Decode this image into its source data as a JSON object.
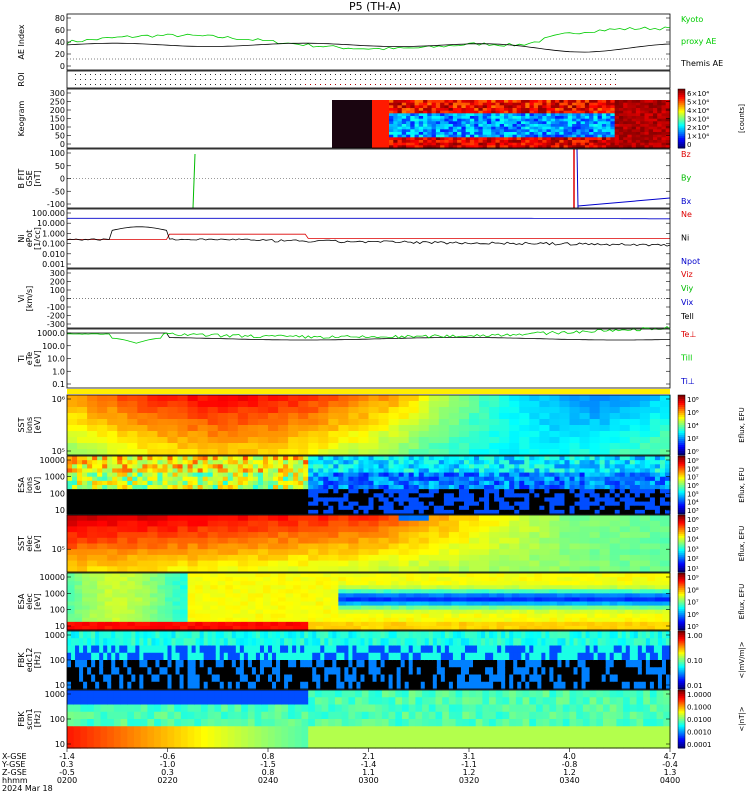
{
  "title": "P5 (TH-A)",
  "date_label": "2024 Mar 18",
  "colors": {
    "kyoto": "#00cc00",
    "themis": "#000000",
    "bz": "#dd0000",
    "by": "#00bb00",
    "bx": "#0000cc",
    "ne": "#dd0000",
    "ni": "#000000",
    "npot": "#0000cc",
    "te": "#000000",
    "ti": "#00cc00"
  },
  "x_axis": {
    "rows": [
      {
        "label": "X-GSE",
        "values": [
          "-1.4",
          "-0.6",
          "0.8",
          "2.1",
          "3.1",
          "4.0",
          "4.7"
        ]
      },
      {
        "label": "Y-GSE",
        "values": [
          "0.3",
          "-1.0",
          "-1.5",
          "-1.4",
          "-1.1",
          "-0.8",
          "-0.4"
        ]
      },
      {
        "label": "Z-GSE",
        "values": [
          "-0.5",
          "0.3",
          "0.8",
          "1.1",
          "1.2",
          "1.2",
          "1.3"
        ]
      },
      {
        "label": "hhmm",
        "values": [
          "0200",
          "0220",
          "0240",
          "0300",
          "0320",
          "0340",
          "0400"
        ]
      }
    ]
  },
  "panels": [
    {
      "id": "ae",
      "ylabel": "AE Index",
      "ticks": [
        "80",
        "60",
        "40",
        "20",
        "0"
      ],
      "yrange": [
        -5,
        85
      ],
      "legend": [
        {
          "text": "Kyoto",
          "color": "#00cc00"
        },
        {
          "text": "proxy AE",
          "color": "#00cc00"
        },
        {
          "text": "Themis AE",
          "color": "#000000"
        }
      ]
    },
    {
      "id": "roi",
      "ylabel": "ROI",
      "ticks": [],
      "legend": []
    },
    {
      "id": "keogram",
      "ylabel": "Keogram",
      "ticks": [
        "300",
        "250",
        "200",
        "150",
        "100",
        "50",
        "0"
      ],
      "cbar": {
        "ticks": [
          "6×10⁴",
          "5×10⁴",
          "4×10⁴",
          "3×10⁴",
          "2×10⁴",
          "1×10⁴",
          "0"
        ],
        "label": "[counts]",
        "type": "keo"
      }
    },
    {
      "id": "bfield",
      "ylabel": "B FIT",
      "ylabel2": "GSE",
      "ylabel3": "[nT]",
      "ticks": [
        "100",
        "50",
        "0",
        "-50",
        "-100"
      ],
      "yrange": [
        -100,
        100
      ],
      "legend": [
        {
          "text": "Bz",
          "color": "#dd0000"
        },
        {
          "text": "By",
          "color": "#00bb00"
        },
        {
          "text": "Bx",
          "color": "#0000cc"
        }
      ]
    },
    {
      "id": "density",
      "ylabel": "Ni",
      "ylabel2": "ePot",
      "ylabel3": "[1/cc]",
      "ticks": [
        "100.000",
        "10.000",
        "1.000",
        "0.100",
        "0.010",
        "0.001"
      ],
      "legend": [
        {
          "text": "Ne",
          "color": "#dd0000"
        },
        {
          "text": "Ni",
          "color": "#000000"
        },
        {
          "text": "Npot",
          "color": "#0000cc"
        }
      ]
    },
    {
      "id": "velocity",
      "ylabel": "Vi",
      "ylabel2": "[km/s]",
      "ticks": [
        "300",
        "200",
        "100",
        "0",
        "-100",
        "-200",
        "-300"
      ],
      "legend": [
        {
          "text": "Viz",
          "color": "#dd0000"
        },
        {
          "text": "Viy",
          "color": "#00bb00"
        },
        {
          "text": "Vix",
          "color": "#0000cc"
        },
        {
          "text": "Tell",
          "color": "#000000"
        }
      ]
    },
    {
      "id": "temperature",
      "ylabel": "Ti",
      "ylabel2": "eTe",
      "ylabel3": "[eV]",
      "ticks": [
        "1000.0",
        "100.0",
        "10.0",
        "1.0",
        "0.1"
      ],
      "legend": [
        {
          "text": "Te⊥",
          "color": "#dd0000"
        },
        {
          "text": "Till",
          "color": "#00cc00"
        },
        {
          "text": "Ti⊥",
          "color": "#0000cc"
        }
      ]
    },
    {
      "id": "sst_i",
      "ylabel": "SST",
      "ylabel2": "ions",
      "ylabel3": "[eV]",
      "ticks": [
        "10⁶",
        "10⁵"
      ],
      "cbar": {
        "ticks": [
          "10⁸",
          "10⁶",
          "10⁴",
          "10²",
          "10⁰"
        ],
        "label": "Eflux, EFU",
        "type": "jet"
      }
    },
    {
      "id": "esa_i",
      "ylabel": "ESA",
      "ylabel2": "ions",
      "ylabel3": "[eV]",
      "ticks": [
        "10000",
        "1000",
        "100",
        "10"
      ],
      "cbar": {
        "ticks": [
          "10⁹",
          "10⁸",
          "10⁷",
          "10⁶",
          "10⁵",
          "10⁴",
          "10³"
        ],
        "label": "Eflux, EFU",
        "type": "jet"
      }
    },
    {
      "id": "sst_e",
      "ylabel": "SST",
      "ylabel2": "elec",
      "ylabel3": "[eV]",
      "ticks": [
        "10⁵"
      ],
      "cbar": {
        "ticks": [
          "10⁶",
          "10⁵",
          "10⁴",
          "10³",
          "10²",
          "10¹"
        ],
        "label": "Eflux, EFU",
        "type": "jet"
      }
    },
    {
      "id": "esa_e",
      "ylabel": "ESA",
      "ylabel2": "elec",
      "ylabel3": "[eV]",
      "ticks": [
        "10000",
        "1000",
        "100",
        "10"
      ],
      "cbar": {
        "ticks": [
          "10⁹",
          "10⁸",
          "10⁷",
          "10⁶",
          "10⁵"
        ],
        "label": "Eflux, EFU",
        "type": "jet"
      }
    },
    {
      "id": "fbk_e",
      "ylabel": "FBK",
      "ylabel2": "edc12",
      "ylabel3": "[Hz]",
      "ticks": [
        "1000",
        "100",
        "10"
      ],
      "cbar": {
        "ticks": [
          "1.00",
          "0.10",
          "0.01"
        ],
        "label": "<|mV/m|>",
        "type": "jet"
      }
    },
    {
      "id": "fbk_b",
      "ylabel": "FBK",
      "ylabel2": "scm1",
      "ylabel3": "[Hz]",
      "ticks": [
        "1000",
        "100",
        "10"
      ],
      "cbar": {
        "ticks": [
          "1.0000",
          "0.1000",
          "0.0100",
          "0.0010",
          "0.0001"
        ],
        "label": "<|nT|>",
        "type": "jet"
      }
    }
  ]
}
